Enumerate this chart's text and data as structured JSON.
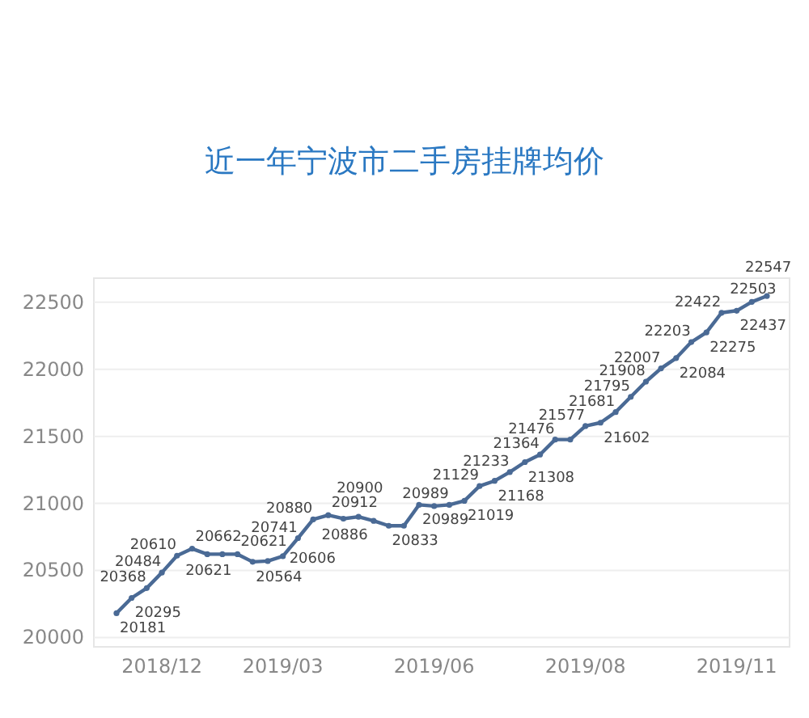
{
  "chart_data": {
    "type": "line",
    "title": "近一年宁波市二手房挂牌均价",
    "color": "#4a6a95",
    "marker": "circle",
    "grid": "y",
    "categories": [
      null,
      null,
      null,
      "2018/12",
      null,
      null,
      null,
      null,
      null,
      null,
      null,
      "2019/03",
      null,
      null,
      null,
      null,
      null,
      null,
      null,
      null,
      null,
      "2019/06",
      null,
      null,
      null,
      null,
      null,
      null,
      null,
      null,
      null,
      "2019/08",
      null,
      null,
      null,
      null,
      null,
      null,
      null,
      null,
      null,
      "2019/11",
      null,
      null
    ],
    "values": [
      20181,
      20295,
      20368,
      20484,
      20610,
      20662,
      20621,
      20621,
      20621,
      20564,
      20570,
      20606,
      20741,
      20880,
      20912,
      20886,
      20900,
      20870,
      20833,
      20833,
      20989,
      20980,
      20989,
      21019,
      21129,
      21168,
      21233,
      21308,
      21364,
      21476,
      21476,
      21577,
      21602,
      21681,
      21795,
      21908,
      22007,
      22084,
      22203,
      22275,
      22422,
      22437,
      22503,
      22547
    ],
    "value_labels": [
      "20181",
      "20295",
      "20368",
      "20484",
      "20610",
      "20662",
      "20621",
      null,
      "20621",
      "20564",
      null,
      "20606",
      "20741",
      "20880",
      "20912",
      "20886",
      "20900",
      null,
      "20833",
      null,
      "20989",
      null,
      "20989",
      "21019",
      "21129",
      "21168",
      "21233",
      "21308",
      "21364",
      "21476",
      null,
      "21577",
      "21602",
      "21681",
      "21795",
      "21908",
      "22007",
      "22084",
      "22203",
      "22275",
      "22422",
      "22437",
      "22503",
      "22547"
    ],
    "ylim": [
      19930,
      22680
    ],
    "yticks": [
      20000,
      20500,
      21000,
      21500,
      22000,
      22500
    ]
  }
}
